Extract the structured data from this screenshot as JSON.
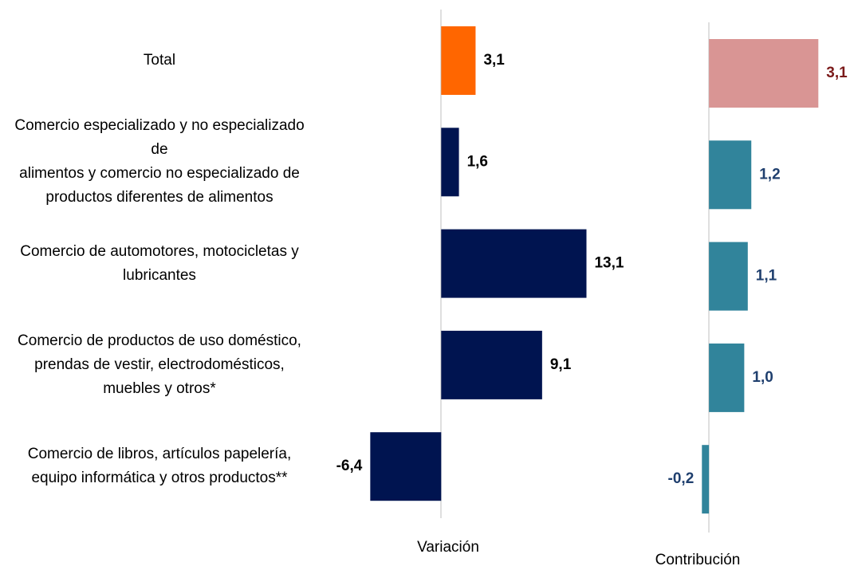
{
  "chart_data": {
    "type": "bar",
    "orientation": "horizontal",
    "categories": [
      "Total",
      "Comercio especializado y no especializado\nde\nalimentos y comercio no especializado de\nproductos diferentes de alimentos",
      "Comercio de automotores, motocicletas y\nlubricantes",
      "Comercio de productos de uso doméstico,\nprendas de vestir, electrodomésticos,\nmuebles y otros*",
      "Comercio de libros, artículos papelería,\nequipo informática y otros productos**"
    ],
    "series": [
      {
        "name": "Variación",
        "values": [
          3.1,
          1.6,
          13.1,
          9.1,
          -6.4
        ],
        "value_labels": [
          "3,1",
          "1,6",
          "13,1",
          "9,1",
          "-6,4"
        ],
        "colors": [
          "#ff6600",
          "#001450",
          "#001450",
          "#001450",
          "#001450"
        ],
        "label_colors": [
          "#000000",
          "#000000",
          "#000000",
          "#000000",
          "#000000"
        ],
        "xlim": [
          -7,
          14
        ]
      },
      {
        "name": "Contribución",
        "values": [
          3.1,
          1.2,
          1.1,
          1.0,
          -0.2
        ],
        "value_labels": [
          "3,1",
          "1,2",
          "1,1",
          "1,0",
          "-0,2"
        ],
        "colors": [
          "#d99594",
          "#31849b",
          "#31849b",
          "#31849b",
          "#31849b"
        ],
        "label_colors": [
          "#7b1a1a",
          "#1f3f6e",
          "#1f3f6e",
          "#1f3f6e",
          "#1f3f6e"
        ],
        "xlim": [
          -0.5,
          3.5
        ]
      }
    ]
  }
}
